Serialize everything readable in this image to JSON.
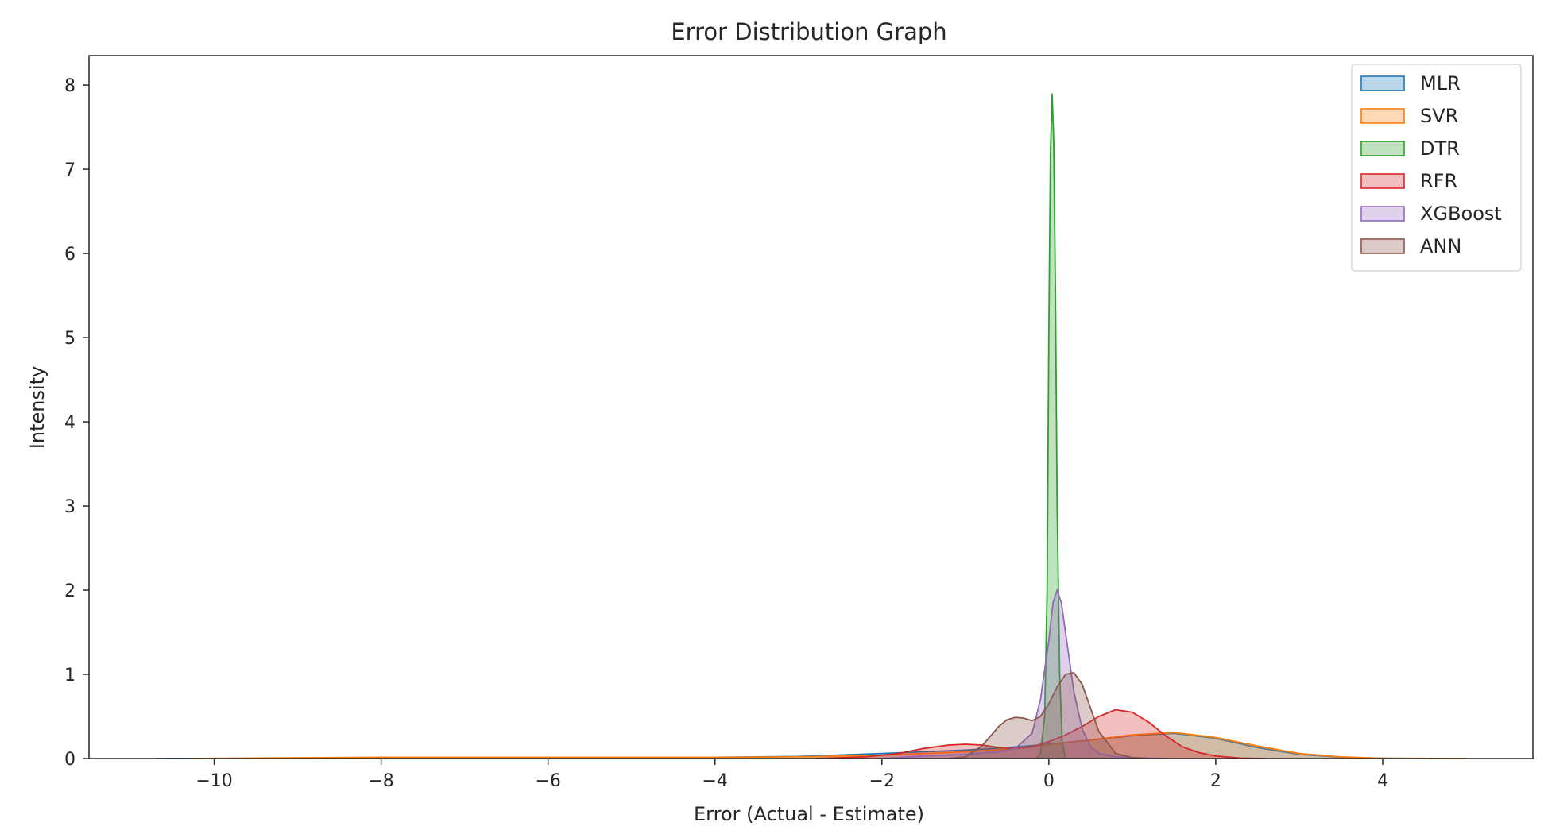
{
  "chart_data": {
    "type": "area",
    "title": "Error Distribution Graph",
    "xlabel": "Error (Actual - Estimate)",
    "ylabel": "Intensity",
    "xlim": [
      -11.5,
      5.8
    ],
    "ylim": [
      0,
      8.35
    ],
    "xticks": [
      -10,
      -8,
      -6,
      -4,
      -2,
      0,
      2,
      4
    ],
    "xtick_labels": [
      "−10",
      "−8",
      "−6",
      "−4",
      "−2",
      "0",
      "2",
      "4"
    ],
    "yticks": [
      0,
      1,
      2,
      3,
      4,
      5,
      6,
      7,
      8
    ],
    "ytick_labels": [
      "0",
      "1",
      "2",
      "3",
      "4",
      "5",
      "6",
      "7",
      "8"
    ],
    "grid": false,
    "legend_position": "top-right",
    "fill_opacity": 0.3,
    "series": [
      {
        "name": "MLR",
        "color": "#1f77b4",
        "x": [
          -10.7,
          -8,
          -6,
          -4,
          -3,
          -2,
          -1.5,
          -1,
          -0.5,
          0,
          0.5,
          1,
          1.5,
          2,
          2.5,
          3,
          3.5,
          4,
          4.6
        ],
        "y": [
          0,
          0.005,
          0.01,
          0.015,
          0.025,
          0.06,
          0.08,
          0.1,
          0.13,
          0.17,
          0.22,
          0.27,
          0.3,
          0.24,
          0.13,
          0.05,
          0.015,
          0.003,
          0
        ]
      },
      {
        "name": "SVR",
        "color": "#ff7f0e",
        "x": [
          -10.3,
          -8,
          -6,
          -4,
          -3,
          -2,
          -1.5,
          -1,
          -0.5,
          0,
          0.5,
          1,
          1.5,
          2,
          2.5,
          3,
          3.5,
          4,
          5.0
        ],
        "y": [
          0,
          0.015,
          0.015,
          0.015,
          0.02,
          0.04,
          0.06,
          0.08,
          0.11,
          0.16,
          0.22,
          0.28,
          0.31,
          0.25,
          0.15,
          0.06,
          0.02,
          0.004,
          0
        ]
      },
      {
        "name": "DTR",
        "color": "#2ca02c",
        "x": [
          -0.15,
          -0.1,
          -0.05,
          -0.02,
          0,
          0.02,
          0.04,
          0.06,
          0.08,
          0.1,
          0.13,
          0.16,
          0.2
        ],
        "y": [
          0,
          0.05,
          0.5,
          2.0,
          5.0,
          7.2,
          7.9,
          7.3,
          5.5,
          3.0,
          1.0,
          0.2,
          0
        ]
      },
      {
        "name": "RFR",
        "color": "#d62728",
        "x": [
          -2.8,
          -2.2,
          -1.8,
          -1.5,
          -1.2,
          -1.0,
          -0.8,
          -0.6,
          -0.4,
          -0.2,
          0,
          0.2,
          0.4,
          0.6,
          0.8,
          1.0,
          1.2,
          1.4,
          1.6,
          1.8,
          2.0,
          2.3,
          2.6
        ],
        "y": [
          0,
          0.02,
          0.06,
          0.12,
          0.16,
          0.17,
          0.16,
          0.13,
          0.12,
          0.14,
          0.2,
          0.28,
          0.38,
          0.5,
          0.58,
          0.55,
          0.43,
          0.27,
          0.14,
          0.07,
          0.03,
          0.005,
          0
        ]
      },
      {
        "name": "XGBoost",
        "color": "#9467bd",
        "x": [
          -2.0,
          -1.5,
          -1.0,
          -0.6,
          -0.4,
          -0.2,
          -0.1,
          0,
          0.05,
          0.1,
          0.15,
          0.2,
          0.3,
          0.4,
          0.5,
          0.6,
          0.8,
          1.0,
          1.4
        ],
        "y": [
          0,
          0.03,
          0.05,
          0.08,
          0.12,
          0.3,
          0.7,
          1.4,
          1.85,
          2.0,
          1.85,
          1.5,
          0.8,
          0.35,
          0.14,
          0.06,
          0.02,
          0.01,
          0
        ]
      },
      {
        "name": "ANN",
        "color": "#8c564b",
        "x": [
          -1.2,
          -1.0,
          -0.8,
          -0.6,
          -0.5,
          -0.4,
          -0.3,
          -0.2,
          -0.1,
          0,
          0.1,
          0.2,
          0.3,
          0.4,
          0.5,
          0.6,
          0.8,
          1.0,
          1.2
        ],
        "y": [
          0,
          0.02,
          0.15,
          0.38,
          0.46,
          0.49,
          0.48,
          0.45,
          0.5,
          0.65,
          0.85,
          1.0,
          1.02,
          0.88,
          0.6,
          0.32,
          0.06,
          0.01,
          0
        ]
      }
    ]
  }
}
